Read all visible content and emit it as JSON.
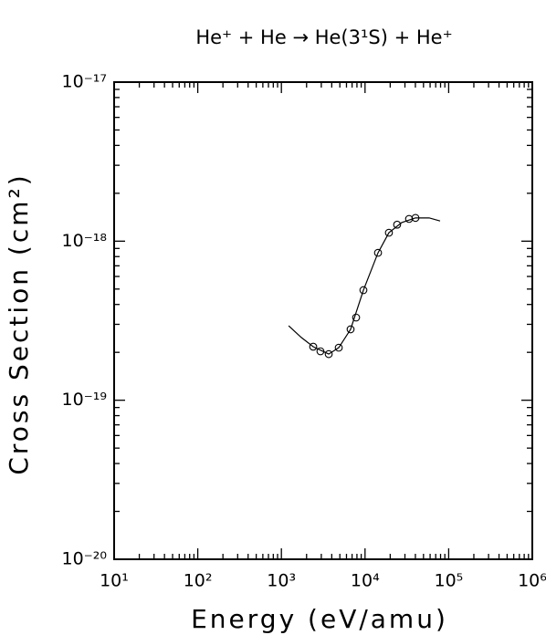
{
  "chart_data": {
    "type": "line",
    "title": "He⁺ + He → He(3¹S) + He⁺",
    "xlabel": "Energy (eV/amu)",
    "ylabel": "Cross Section (cm²)",
    "xscale": "log",
    "yscale": "log",
    "minor_ticks": true,
    "xlim": [
      10,
      1000000
    ],
    "ylim": [
      1e-20,
      1e-17
    ],
    "xticks": [
      {
        "value": 10,
        "label": "10¹"
      },
      {
        "value": 100,
        "label": "10²"
      },
      {
        "value": 1000,
        "label": "10³"
      },
      {
        "value": 10000,
        "label": "10⁴"
      },
      {
        "value": 100000,
        "label": "10⁵"
      },
      {
        "value": 1000000,
        "label": "10⁶"
      }
    ],
    "yticks": [
      {
        "value": 1e-20,
        "label": "10⁻²⁰"
      },
      {
        "value": 1e-19,
        "label": "10⁻¹⁹"
      },
      {
        "value": 1e-18,
        "label": "10⁻¹⁸"
      },
      {
        "value": 1e-17,
        "label": "10⁻¹⁷"
      }
    ],
    "series": [
      {
        "style": "line",
        "color": "#000000",
        "x": [
          1220,
          1730,
          2400,
          3680,
          4850,
          6720,
          9560,
          14300,
          19300,
          27500,
          40100,
          58400,
          78900
        ],
        "values": [
          2.94e-19,
          2.48e-19,
          2.17e-19,
          1.95e-19,
          2.14e-19,
          2.79e-19,
          4.92e-19,
          8.45e-19,
          1.13e-18,
          1.31e-18,
          1.4e-18,
          1.4e-18,
          1.34e-18
        ]
      },
      {
        "style": "circle",
        "color": "#000000",
        "x": [
          2400,
          2930,
          3680,
          4850,
          6720,
          7820,
          9560,
          14300,
          19300,
          24200,
          33600,
          40100
        ],
        "values": [
          2.17e-19,
          2.03e-19,
          1.95e-19,
          2.14e-19,
          2.79e-19,
          3.31e-19,
          4.92e-19,
          8.45e-19,
          1.13e-18,
          1.27e-18,
          1.38e-18,
          1.4e-18
        ]
      }
    ]
  }
}
